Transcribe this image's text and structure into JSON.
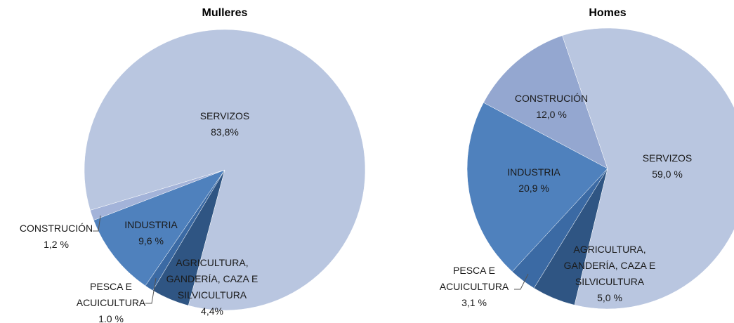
{
  "chart_data": [
    {
      "type": "pie",
      "title": "Mulleres",
      "categories": [
        "AGRICULTURA, GANDERÍA, CAZA E SILVICULTURA",
        "PESCA E ACUICULTURA",
        "INDUSTRIA",
        "CONSTRUCIÓN",
        "SERVIZOS"
      ],
      "values": [
        4.4,
        1.0,
        9.6,
        1.2,
        83.8
      ],
      "value_labels": [
        "4,4%",
        "1.0 %",
        "9,6 %",
        "1,2 %",
        "83,8%"
      ],
      "colors": [
        "#2f5583",
        "#3b6aa4",
        "#4f81bd",
        "#a3b3d9",
        "#b9c6e0"
      ]
    },
    {
      "type": "pie",
      "title": "Homes",
      "categories": [
        "AGRICULTURA, GANDERÍA, CAZA E SILVICULTURA",
        "PESCA E ACUICULTURA",
        "INDUSTRIA",
        "CONSTRUCIÓN",
        "SERVIZOS"
      ],
      "values": [
        5.0,
        3.1,
        20.9,
        12.0,
        59.0
      ],
      "value_labels": [
        "5,0 %",
        "3,1 %",
        "20,9 %",
        "12,0 %",
        "59,0 %"
      ],
      "colors": [
        "#2f5583",
        "#3b6aa4",
        "#4f81bd",
        "#94a7d0",
        "#b9c6e0"
      ]
    }
  ]
}
